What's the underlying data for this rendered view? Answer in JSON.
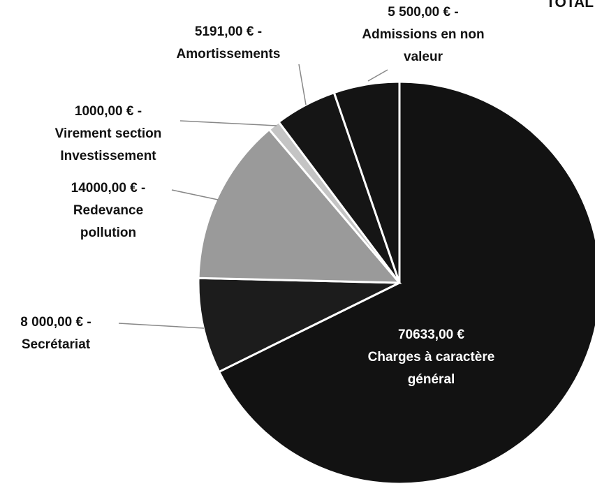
{
  "chart_data": {
    "type": "pie",
    "title": "TOTAL",
    "categories": [
      "Charges à caractère général",
      "Secrétariat",
      "Redevance pollution",
      "Virement section Investissement",
      "Amortissements",
      "Admissions en non valeur"
    ],
    "values": [
      70633,
      8000,
      14000,
      1000,
      5191,
      5500
    ],
    "value_labels": [
      "70633,00 €",
      "8 000,00 € -",
      "14000,00 € -",
      "1000,00 € -",
      "5191,00 €  -",
      "5 500,00 € -"
    ],
    "colors": [
      "#121212",
      "#1c1c1c",
      "#9a9a9a",
      "#c4c4c4",
      "#151515",
      "#141414"
    ]
  }
}
